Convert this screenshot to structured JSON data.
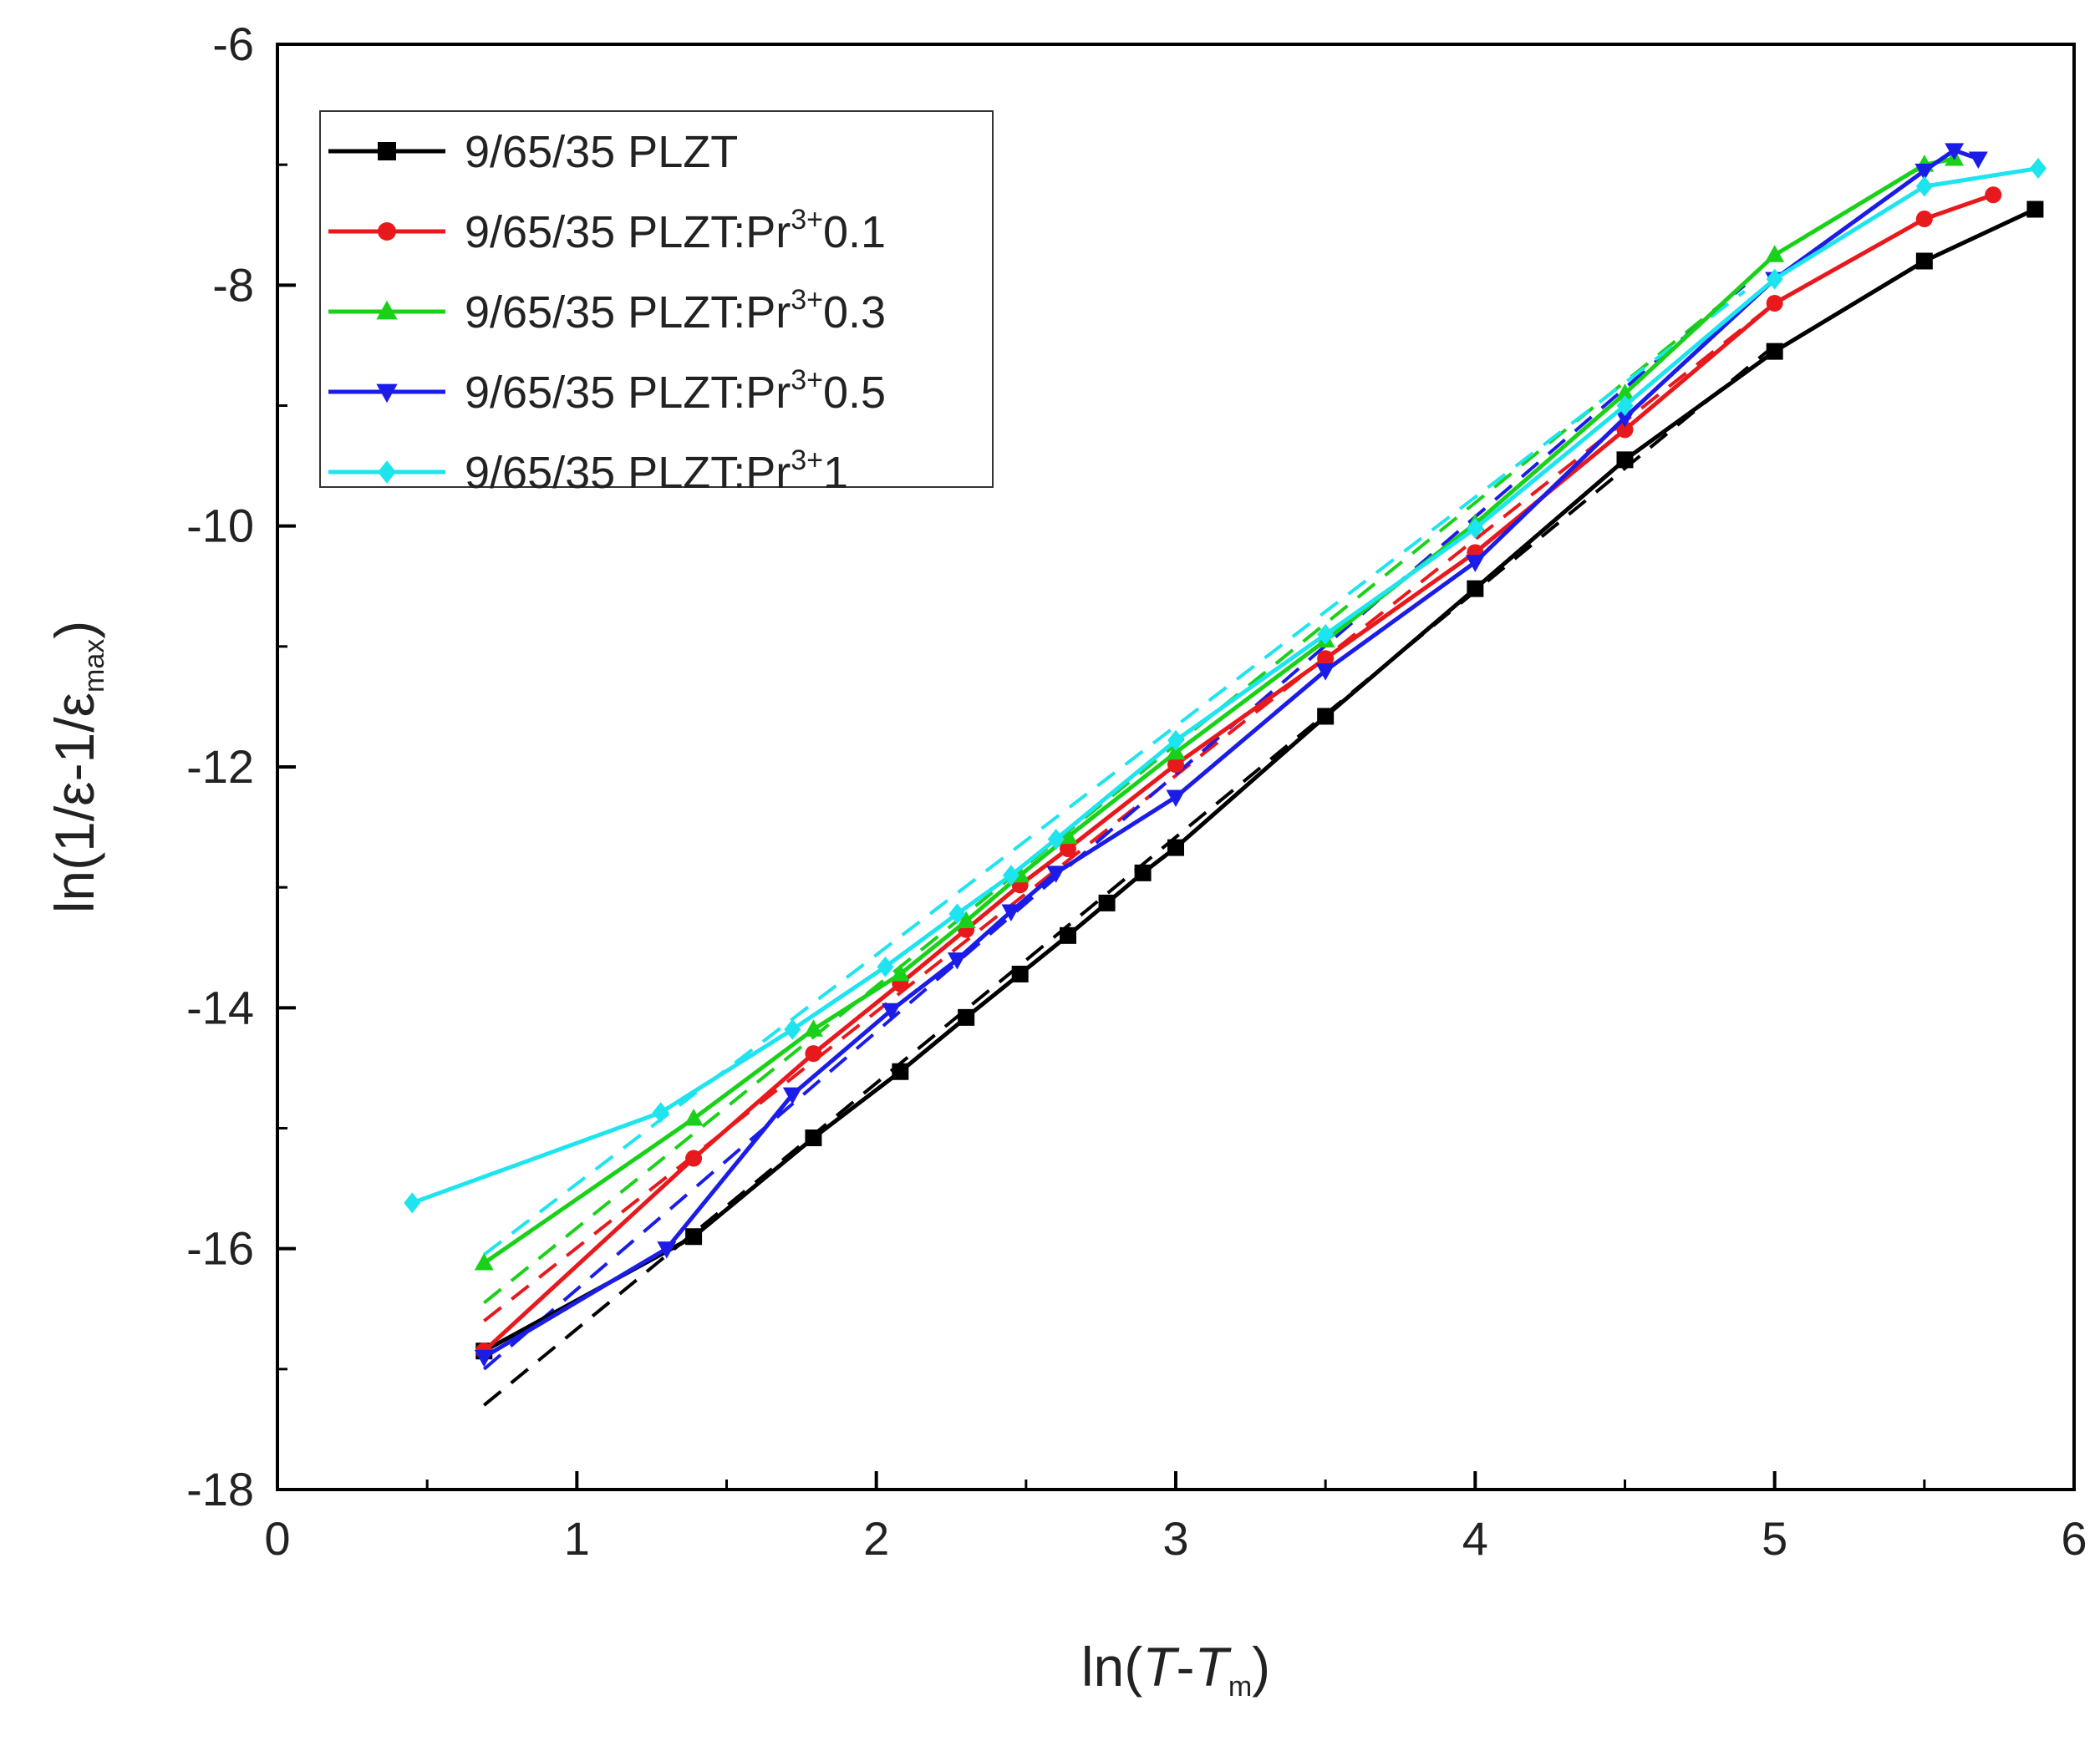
{
  "chart_data": {
    "type": "line",
    "title": "",
    "xlabel": {
      "prefix": "ln(",
      "t": "T",
      "dash": "-",
      "tm": "T",
      "sub": "m",
      "suffix": ")"
    },
    "ylabel": {
      "prefix": "ln(1/ε-1/ε",
      "sub": "max",
      "suffix": ")"
    },
    "xlim": [
      0,
      6
    ],
    "ylim": [
      -18,
      -6
    ],
    "xticks": [
      0,
      1,
      2,
      3,
      4,
      5,
      6
    ],
    "yticks": [
      -6,
      -8,
      -10,
      -12,
      -14,
      -16,
      -18
    ],
    "xtick_labels": [
      "0",
      "1",
      "2",
      "3",
      "4",
      "5",
      "6"
    ],
    "ytick_labels": [
      "-6",
      "-8",
      "-10",
      "-12",
      "-14",
      "-16",
      "-18"
    ],
    "legend_position": "top-left",
    "series": [
      {
        "name": "9/65/35 PLZT",
        "legend": {
          "base": "9/65/35 PLZT",
          "sup": "",
          "tail": ""
        },
        "color": "#000000",
        "marker": "square",
        "x": [
          0.69,
          1.39,
          1.79,
          2.08,
          2.3,
          2.48,
          2.64,
          2.77,
          2.89,
          3.0,
          3.5,
          4.0,
          4.5,
          5.0,
          5.5,
          5.87
        ],
        "y": [
          -16.85,
          -15.9,
          -15.08,
          -14.53,
          -14.08,
          -13.72,
          -13.4,
          -13.13,
          -12.88,
          -12.67,
          -11.58,
          -10.52,
          -9.45,
          -8.55,
          -7.8,
          -7.37
        ],
        "fit": {
          "x": [
            0.69,
            5.0
          ],
          "y": [
            -17.3,
            -8.5
          ]
        }
      },
      {
        "name": "9/65/35 PLZT:Pr3+0.1",
        "legend": {
          "base": "9/65/35 PLZT:Pr",
          "sup": "3+",
          "tail": "0.1"
        },
        "color": "#e8191c",
        "marker": "circle",
        "x": [
          0.69,
          1.39,
          1.79,
          2.08,
          2.3,
          2.48,
          2.64,
          3.0,
          3.5,
          4.0,
          4.5,
          5.0,
          5.5,
          5.73
        ],
        "y": [
          -16.85,
          -15.25,
          -14.38,
          -13.8,
          -13.35,
          -12.98,
          -12.68,
          -11.98,
          -11.1,
          -10.22,
          -9.2,
          -8.15,
          -7.45,
          -7.25
        ],
        "fit": {
          "x": [
            0.69,
            5.0
          ],
          "y": [
            -16.6,
            -8.15
          ]
        }
      },
      {
        "name": "9/65/35 PLZT:Pr3+0.3",
        "legend": {
          "base": "9/65/35 PLZT:Pr",
          "sup": "3+",
          "tail": "0.3"
        },
        "color": "#1ad11a",
        "marker": "triangle-up",
        "x": [
          0.69,
          1.39,
          1.79,
          2.08,
          2.3,
          2.48,
          2.64,
          3.0,
          3.5,
          4.0,
          4.5,
          5.0,
          5.5,
          5.6
        ],
        "y": [
          -16.12,
          -14.92,
          -14.18,
          -13.72,
          -13.28,
          -12.9,
          -12.58,
          -11.88,
          -10.95,
          -9.98,
          -8.9,
          -7.75,
          -7.0,
          -6.95
        ],
        "fit": {
          "x": [
            0.69,
            4.9
          ],
          "y": [
            -16.45,
            -8.0
          ]
        }
      },
      {
        "name": "9/65/35 PLZT:Pr3+0.5",
        "legend": {
          "base": "9/65/35 PLZT:Pr",
          "sup": "3+",
          "tail": "0.5"
        },
        "color": "#1c1ce8",
        "marker": "triangle-down",
        "x": [
          0.69,
          1.3,
          1.72,
          2.05,
          2.27,
          2.45,
          2.6,
          3.0,
          3.5,
          4.0,
          4.5,
          5.0,
          5.5,
          5.6,
          5.68
        ],
        "y": [
          -16.9,
          -16.0,
          -14.72,
          -14.02,
          -13.6,
          -13.2,
          -12.88,
          -12.25,
          -11.2,
          -10.3,
          -9.1,
          -7.95,
          -7.05,
          -6.88,
          -6.95
        ],
        "fit": {
          "x": [
            0.69,
            4.9
          ],
          "y": [
            -17.0,
            -8.0
          ]
        }
      },
      {
        "name": "9/65/35 PLZT:Pr3+1",
        "legend": {
          "base": "9/65/35 PLZT:Pr",
          "sup": "3+",
          "tail": "1"
        },
        "color": "#1ee4ef",
        "marker": "diamond",
        "x": [
          0.45,
          1.28,
          1.72,
          2.03,
          2.27,
          2.45,
          2.6,
          3.0,
          3.5,
          4.0,
          4.5,
          5.0,
          5.5,
          5.88
        ],
        "y": [
          -15.62,
          -14.87,
          -14.18,
          -13.66,
          -13.22,
          -12.9,
          -12.6,
          -11.78,
          -10.9,
          -10.02,
          -9.0,
          -7.95,
          -7.18,
          -7.03
        ],
        "fit": {
          "x": [
            0.69,
            4.9
          ],
          "y": [
            -16.05,
            -8.05
          ]
        }
      }
    ]
  }
}
